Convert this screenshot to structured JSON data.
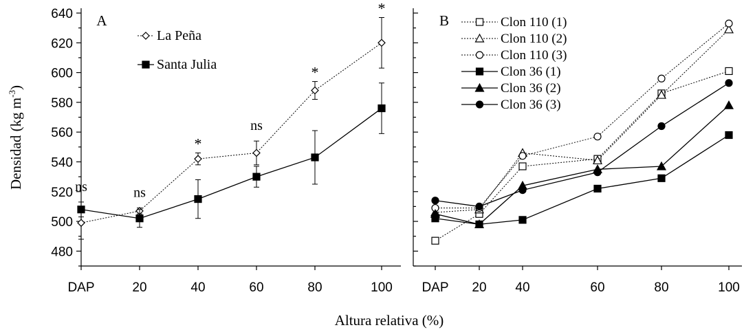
{
  "figure": {
    "y_axis_label": "Densidad (kg m",
    "y_axis_label_sup": "-3",
    "y_axis_label_close": ")",
    "x_axis_label": "Altura relativa (%)"
  },
  "chart_data": [
    {
      "type": "line",
      "panel_label": "A",
      "categories": [
        "DAP",
        "20",
        "40",
        "60",
        "80",
        "100"
      ],
      "yticks": [
        "480",
        "500",
        "520",
        "540",
        "560",
        "580",
        "600",
        "620",
        "640"
      ],
      "ylim": [
        470,
        640
      ],
      "grid": false,
      "legend_position": "top-left",
      "series": [
        {
          "name": "La Peña",
          "style": "dotted",
          "marker": "diamond-open",
          "color": "#000000",
          "values": [
            499,
            507,
            542,
            546,
            588,
            620
          ],
          "errors": [
            11,
            2,
            4,
            8,
            6,
            17
          ]
        },
        {
          "name": "Santa Julia",
          "style": "solid",
          "marker": "square-filled",
          "color": "#000000",
          "values": [
            508,
            502,
            515,
            530,
            543,
            576
          ],
          "errors": [
            5,
            6,
            13,
            7,
            18,
            17
          ]
        }
      ],
      "annotations": [
        "ns",
        "ns",
        "*",
        "ns",
        "*",
        "*"
      ]
    },
    {
      "type": "line",
      "panel_label": "B",
      "categories": [
        "DAP",
        "20",
        "40",
        "60",
        "80",
        "100"
      ],
      "ylim": [
        470,
        640
      ],
      "grid": false,
      "legend_position": "top-left",
      "series": [
        {
          "name": "Clon 110 (1)",
          "style": "dotted",
          "marker": "square-open",
          "values": [
            487,
            505,
            537,
            542,
            586,
            601
          ]
        },
        {
          "name": "Clon 110 (2)",
          "style": "dotted",
          "marker": "triangle-open",
          "values": [
            506,
            508,
            546,
            541,
            585,
            629
          ]
        },
        {
          "name": "Clon 110 (3)",
          "style": "dotted",
          "marker": "circle-open",
          "values": [
            509,
            509,
            544,
            557,
            596,
            633
          ]
        },
        {
          "name": "Clon 36 (1)",
          "style": "solid",
          "marker": "square-filled",
          "values": [
            502,
            498,
            501,
            522,
            529,
            558
          ]
        },
        {
          "name": "Clon 36 (2)",
          "style": "solid",
          "marker": "triangle-filled",
          "values": [
            505,
            498,
            524,
            535,
            537,
            578
          ]
        },
        {
          "name": "Clon 36 (3)",
          "style": "solid",
          "marker": "circle-filled",
          "values": [
            514,
            510,
            521,
            533,
            564,
            593
          ]
        }
      ]
    }
  ]
}
